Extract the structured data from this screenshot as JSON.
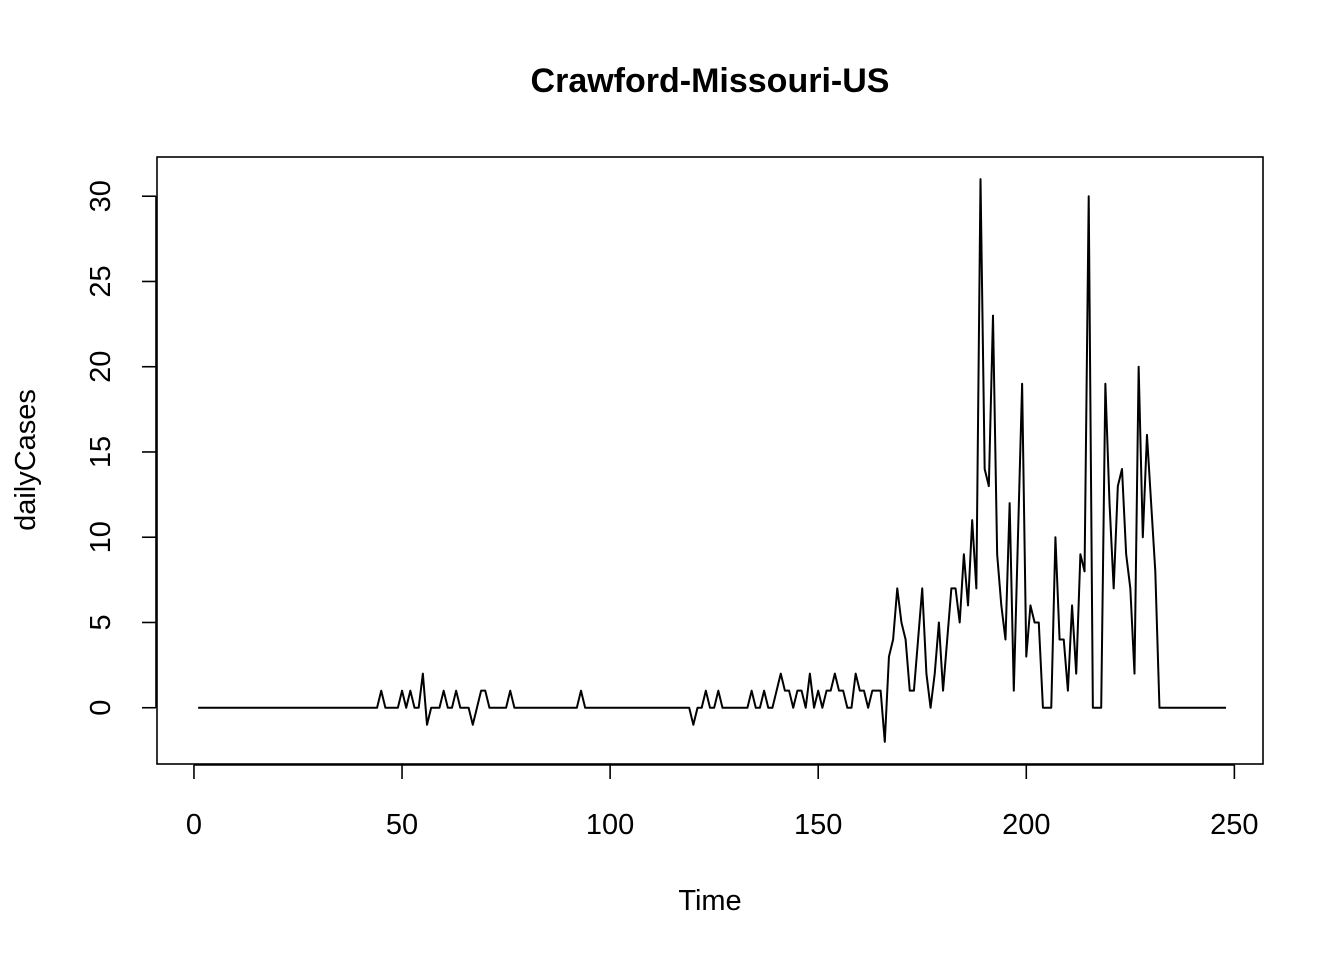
{
  "chart_data": {
    "type": "line",
    "title": "Crawford-Missouri-US",
    "xlabel": "Time",
    "ylabel": "dailyCases",
    "xlim": [
      -8.88,
      256.88
    ],
    "ylim": [
      -3.3,
      32.3
    ],
    "xticks": [
      0,
      50,
      100,
      150,
      200,
      250
    ],
    "yticks": [
      0,
      5,
      10,
      15,
      20,
      25,
      30
    ],
    "xtick_labels": [
      "0",
      "50",
      "100",
      "150",
      "200",
      "250"
    ],
    "ytick_labels": [
      "0",
      "5",
      "10",
      "15",
      "20",
      "25",
      "30"
    ],
    "grid": false,
    "line_color": "#000000",
    "series": [
      {
        "x": [
          1,
          2,
          3,
          4,
          5,
          6,
          7,
          8,
          9,
          10,
          11,
          12,
          13,
          14,
          15,
          16,
          17,
          18,
          19,
          20,
          21,
          22,
          23,
          24,
          25,
          26,
          27,
          28,
          29,
          30,
          31,
          32,
          33,
          34,
          35,
          36,
          37,
          38,
          39,
          40,
          41,
          42,
          43,
          44,
          45,
          46,
          47,
          48,
          49,
          50,
          51,
          52,
          53,
          54,
          55,
          56,
          57,
          58,
          59,
          60,
          61,
          62,
          63,
          64,
          65,
          66,
          67,
          68,
          69,
          70,
          71,
          72,
          73,
          74,
          75,
          76,
          77,
          78,
          79,
          80,
          81,
          82,
          83,
          84,
          85,
          86,
          87,
          88,
          89,
          90,
          91,
          92,
          93,
          94,
          95,
          96,
          97,
          98,
          99,
          100,
          101,
          102,
          103,
          104,
          105,
          106,
          107,
          108,
          109,
          110,
          111,
          112,
          113,
          114,
          115,
          116,
          117,
          118,
          119,
          120,
          121,
          122,
          123,
          124,
          125,
          126,
          127,
          128,
          129,
          130,
          131,
          132,
          133,
          134,
          135,
          136,
          137,
          138,
          139,
          140,
          141,
          142,
          143,
          144,
          145,
          146,
          147,
          148,
          149,
          150,
          151,
          152,
          153,
          154,
          155,
          156,
          157,
          158,
          159,
          160,
          161,
          162,
          163,
          164,
          165,
          166,
          167,
          168,
          169,
          170,
          171,
          172,
          173,
          174,
          175,
          176,
          177,
          178,
          179,
          180,
          181,
          182,
          183,
          184,
          185,
          186,
          187,
          188,
          189,
          190,
          191,
          192,
          193,
          194,
          195,
          196,
          197,
          198,
          199,
          200,
          201,
          202,
          203,
          204,
          205,
          206,
          207,
          208,
          209,
          210,
          211,
          212,
          213,
          214,
          215,
          216,
          217,
          218,
          219,
          220,
          221,
          222,
          223,
          224,
          225,
          226,
          227,
          228,
          229,
          230,
          231,
          232,
          233,
          234,
          235,
          236,
          237,
          238,
          239,
          240,
          241,
          242,
          243,
          244,
          245,
          246,
          247,
          248
        ],
        "values": [
          0,
          0,
          0,
          0,
          0,
          0,
          0,
          0,
          0,
          0,
          0,
          0,
          0,
          0,
          0,
          0,
          0,
          0,
          0,
          0,
          0,
          0,
          0,
          0,
          0,
          0,
          0,
          0,
          0,
          0,
          0,
          0,
          0,
          0,
          0,
          0,
          0,
          0,
          0,
          0,
          0,
          0,
          0,
          0,
          1,
          0,
          0,
          0,
          0,
          1,
          0,
          1,
          0,
          0,
          2,
          -1,
          0,
          0,
          0,
          1,
          0,
          0,
          1,
          0,
          0,
          0,
          -1,
          0,
          1,
          1,
          0,
          0,
          0,
          0,
          0,
          1,
          0,
          0,
          0,
          0,
          0,
          0,
          0,
          0,
          0,
          0,
          0,
          0,
          0,
          0,
          0,
          0,
          1,
          0,
          0,
          0,
          0,
          0,
          0,
          0,
          0,
          0,
          0,
          0,
          0,
          0,
          0,
          0,
          0,
          0,
          0,
          0,
          0,
          0,
          0,
          0,
          0,
          0,
          0,
          -1,
          0,
          0,
          1,
          0,
          0,
          1,
          0,
          0,
          0,
          0,
          0,
          0,
          0,
          1,
          0,
          0,
          1,
          0,
          0,
          1,
          2,
          1,
          1,
          0,
          1,
          1,
          0,
          2,
          0,
          1,
          0,
          1,
          1,
          2,
          1,
          1,
          0,
          0,
          2,
          1,
          1,
          0,
          1,
          1,
          1,
          -2,
          3,
          4,
          7,
          5,
          4,
          1,
          1,
          4,
          7,
          2,
          0,
          2,
          5,
          1,
          4,
          7,
          7,
          5,
          9,
          6,
          11,
          7,
          31,
          14,
          13,
          23,
          9,
          6,
          4,
          12,
          1,
          10,
          19,
          3,
          6,
          5,
          5,
          0,
          0,
          0,
          10,
          4,
          4,
          1,
          6,
          2,
          9,
          8,
          30,
          0,
          0,
          0,
          19,
          12,
          7,
          13,
          14,
          9,
          7,
          2,
          20,
          10,
          16,
          12,
          8,
          0,
          0,
          0,
          0,
          0,
          0,
          0,
          0,
          0,
          0,
          0,
          0,
          0,
          0,
          0,
          0,
          0
        ]
      }
    ]
  }
}
